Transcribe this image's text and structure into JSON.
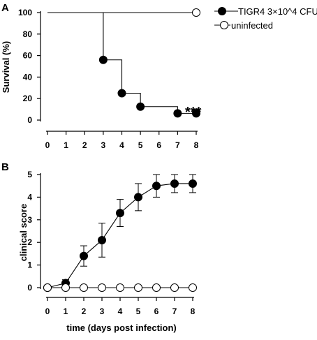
{
  "colors": {
    "filled": "#000000",
    "open": "#ffffff",
    "stroke": "#000000"
  },
  "legend": {
    "items": [
      {
        "label": "TIGR4 3×10^4 CFU",
        "marker": "filled-circle"
      },
      {
        "label": "uninfected",
        "marker": "open-circle"
      }
    ],
    "placement": "top-right"
  },
  "chart_data": [
    {
      "panel": "A",
      "type": "line",
      "step": true,
      "xlabel": "",
      "ylabel": "Survival (%)",
      "xlim": [
        0,
        8
      ],
      "ylim": [
        0,
        100
      ],
      "xticks": [
        0,
        1,
        2,
        3,
        4,
        5,
        6,
        7,
        8
      ],
      "yticks": [
        0,
        20,
        40,
        60,
        80,
        100
      ],
      "annotation": "***",
      "series": [
        {
          "name": "TIGR4 3×10^4 CFU",
          "marker": "filled",
          "line": [
            [
              0,
              100
            ],
            [
              3,
              100
            ],
            [
              3,
              56
            ],
            [
              4,
              56
            ],
            [
              4,
              25
            ],
            [
              5,
              25
            ],
            [
              5,
              12.5
            ],
            [
              7,
              12.5
            ],
            [
              7,
              6.25
            ],
            [
              8,
              6.25
            ]
          ],
          "points": [
            [
              3,
              56
            ],
            [
              4,
              25
            ],
            [
              5,
              12.5
            ],
            [
              7,
              6.25
            ],
            [
              8,
              6.25
            ]
          ]
        },
        {
          "name": "uninfected",
          "marker": "open",
          "line": [
            [
              0,
              100
            ],
            [
              8,
              100
            ]
          ],
          "points": [
            [
              8,
              100
            ]
          ]
        }
      ]
    },
    {
      "panel": "B",
      "type": "line",
      "xlabel": "time (days post infection)",
      "ylabel": "clinical score",
      "xlim": [
        0,
        8
      ],
      "ylim": [
        0,
        5
      ],
      "xticks": [
        0,
        1,
        2,
        3,
        4,
        5,
        6,
        7,
        8
      ],
      "yticks": [
        0,
        1,
        2,
        3,
        4,
        5
      ],
      "series": [
        {
          "name": "TIGR4 3×10^4 CFU",
          "marker": "filled",
          "x": [
            0,
            1,
            2,
            3,
            4,
            5,
            6,
            7,
            8
          ],
          "y": [
            0,
            0.2,
            1.4,
            2.1,
            3.3,
            4.0,
            4.5,
            4.6,
            4.6
          ],
          "err": [
            0,
            0.15,
            0.45,
            0.75,
            0.6,
            0.6,
            0.5,
            0.4,
            0.4
          ]
        },
        {
          "name": "uninfected",
          "marker": "open",
          "x": [
            0,
            1,
            2,
            3,
            4,
            5,
            6,
            7,
            8
          ],
          "y": [
            0,
            0,
            0,
            0,
            0,
            0,
            0,
            0,
            0
          ],
          "err": [
            0,
            0,
            0,
            0,
            0,
            0,
            0,
            0,
            0
          ]
        }
      ]
    }
  ]
}
